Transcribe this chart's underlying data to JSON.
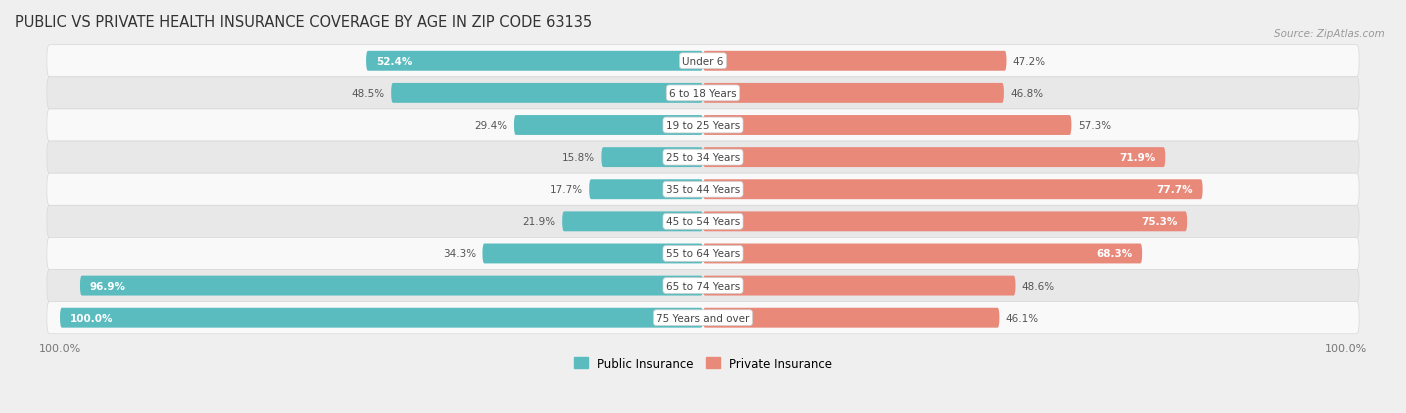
{
  "title": "PUBLIC VS PRIVATE HEALTH INSURANCE COVERAGE BY AGE IN ZIP CODE 63135",
  "source": "Source: ZipAtlas.com",
  "categories": [
    "Under 6",
    "6 to 18 Years",
    "19 to 25 Years",
    "25 to 34 Years",
    "35 to 44 Years",
    "45 to 54 Years",
    "55 to 64 Years",
    "65 to 74 Years",
    "75 Years and over"
  ],
  "public_values": [
    52.4,
    48.5,
    29.4,
    15.8,
    17.7,
    21.9,
    34.3,
    96.9,
    100.0
  ],
  "private_values": [
    47.2,
    46.8,
    57.3,
    71.9,
    77.7,
    75.3,
    68.3,
    48.6,
    46.1
  ],
  "public_color": "#5bbcbf",
  "private_color": "#e8897a",
  "bg_color": "#efefef",
  "row_light_color": "#f9f9f9",
  "row_dark_color": "#e8e8e8",
  "row_border_color": "#d8d8d8",
  "axis_label": "100.0%",
  "legend_public": "Public Insurance",
  "legend_private": "Private Insurance",
  "bar_height": 0.62,
  "max_value": 100.0
}
